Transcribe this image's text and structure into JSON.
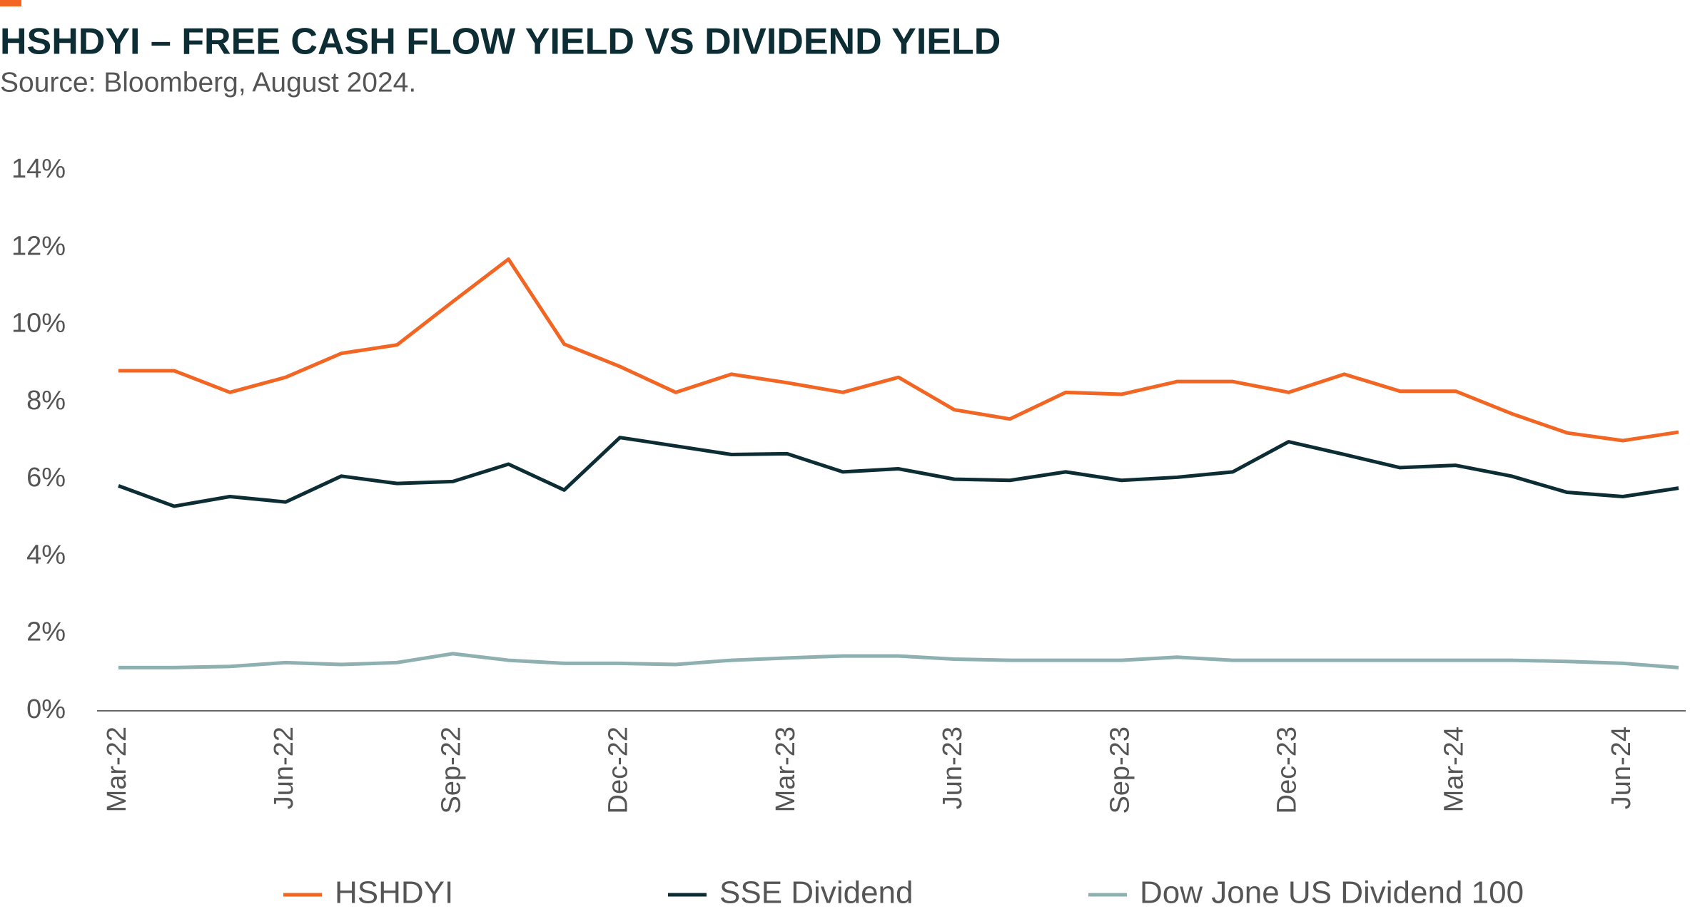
{
  "chart_data": {
    "type": "line",
    "title": "HSHDYI – FREE CASH FLOW YIELD VS DIVIDEND YIELD",
    "subtitle": "Source: Bloomberg, August 2024.",
    "categories": [
      "Mar-22",
      null,
      null,
      "Jun-22",
      null,
      null,
      "Sep-22",
      null,
      null,
      "Dec-22",
      null,
      null,
      "Mar-23",
      null,
      null,
      "Jun-23",
      null,
      null,
      "Sep-23",
      null,
      null,
      "Dec-23",
      null,
      null,
      "Mar-24",
      null,
      null,
      "Jun-24",
      null
    ],
    "series": [
      {
        "name": "HSHDYI",
        "color": "#f26522",
        "values": [
          8.81,
          8.81,
          8.25,
          8.64,
          9.26,
          9.48,
          10.6,
          11.7,
          9.5,
          8.92,
          8.25,
          8.72,
          8.5,
          8.25,
          8.64,
          7.8,
          7.56,
          8.25,
          8.2,
          8.53,
          8.53,
          8.25,
          8.72,
          8.28,
          8.28,
          7.7,
          7.2,
          7.0,
          7.22
        ]
      },
      {
        "name": "SSE Dividend",
        "color": "#0d2d35",
        "values": [
          5.83,
          5.3,
          5.55,
          5.41,
          6.08,
          5.89,
          5.94,
          6.39,
          5.72,
          7.08,
          6.86,
          6.64,
          6.66,
          6.19,
          6.27,
          6.0,
          5.97,
          6.19,
          5.97,
          6.05,
          6.19,
          6.97,
          6.64,
          6.3,
          6.36,
          6.08,
          5.66,
          5.55,
          5.77
        ]
      },
      {
        "name": "Dow Jone US Dividend 100",
        "color": "#8fb0b0",
        "values": [
          1.12,
          1.12,
          1.15,
          1.25,
          1.2,
          1.25,
          1.48,
          1.31,
          1.23,
          1.23,
          1.2,
          1.31,
          1.37,
          1.42,
          1.42,
          1.34,
          1.31,
          1.31,
          1.31,
          1.39,
          1.31,
          1.31,
          1.31,
          1.31,
          1.31,
          1.31,
          1.28,
          1.23,
          1.12
        ]
      }
    ],
    "ylim": [
      0,
      14
    ],
    "yticks": [
      {
        "value": 0,
        "label": "0%"
      },
      {
        "value": 2,
        "label": "2%"
      },
      {
        "value": 4,
        "label": "4%"
      },
      {
        "value": 6,
        "label": "6%"
      },
      {
        "value": 8,
        "label": "8%"
      },
      {
        "value": 10,
        "label": "10%"
      },
      {
        "value": 12,
        "label": "12%"
      },
      {
        "value": 14,
        "label": "14%"
      }
    ],
    "grid": false,
    "legend": "bottom"
  }
}
